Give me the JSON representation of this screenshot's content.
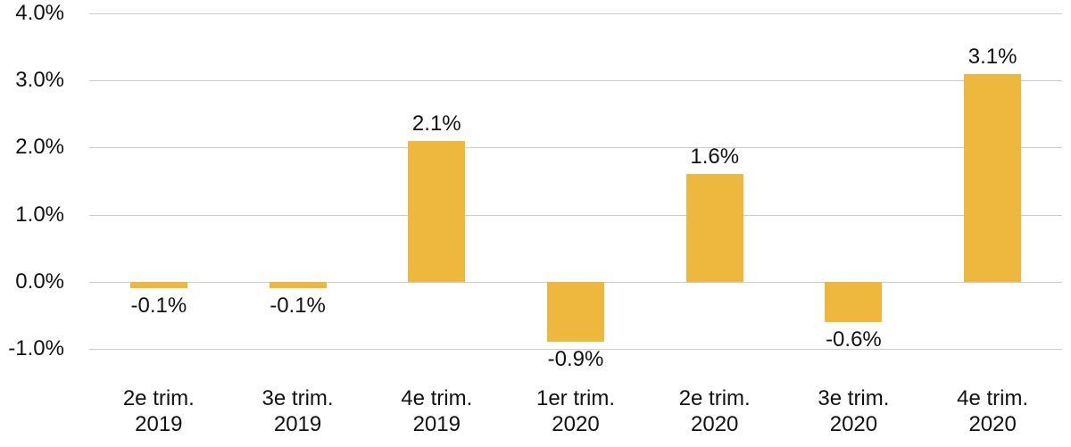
{
  "chart_data": {
    "type": "bar",
    "title": "",
    "xlabel": "",
    "ylabel": "",
    "categories": [
      "2e trim.\n2019",
      "3e trim.\n2019",
      "4e trim.\n2019",
      "1er trim.\n2020",
      "2e trim.\n2020",
      "3e trim.\n2020",
      "4e trim.\n2020"
    ],
    "values": [
      -0.1,
      -0.1,
      2.1,
      -0.9,
      1.6,
      -0.6,
      3.1
    ],
    "value_labels": [
      "-0.1%",
      "-0.1%",
      "2.1%",
      "-0.9%",
      "1.6%",
      "-0.6%",
      "3.1%"
    ],
    "y_ticks": [
      {
        "label": "4.0%",
        "value": 4.0
      },
      {
        "label": "3.0%",
        "value": 3.0
      },
      {
        "label": "2.0%",
        "value": 2.0
      },
      {
        "label": "1.0%",
        "value": 1.0
      },
      {
        "label": "0.0%",
        "value": 0.0
      },
      {
        "label": "-1.0%",
        "value": -1.0
      }
    ],
    "ylim": [
      -1.0,
      4.0
    ],
    "grid": true,
    "legend": false,
    "bar_color": "#edb83d",
    "grid_color": "#cccccc",
    "text_color": "#111111"
  }
}
